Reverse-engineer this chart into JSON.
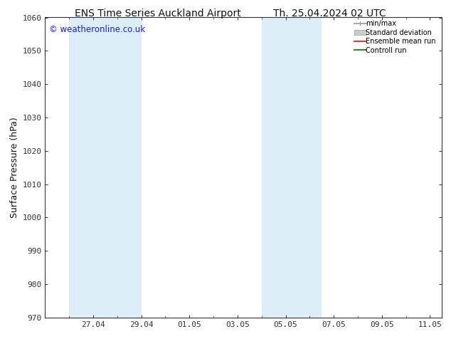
{
  "title_left": "ENS Time Series Auckland Airport",
  "title_right": "Th. 25.04.2024 02 UTC",
  "ylabel": "Surface Pressure (hPa)",
  "ylim": [
    970,
    1060
  ],
  "yticks": [
    970,
    980,
    990,
    1000,
    1010,
    1020,
    1030,
    1040,
    1050,
    1060
  ],
  "xlim": [
    0,
    16.5
  ],
  "xtick_labels": [
    "27.04",
    "29.04",
    "01.05",
    "03.05",
    "05.05",
    "07.05",
    "09.05",
    "11.05"
  ],
  "xtick_positions": [
    2,
    4,
    6,
    8,
    10,
    12,
    14,
    16
  ],
  "shaded_bands": [
    {
      "x_start": 1.33,
      "x_end": 2.67,
      "color": "#ddeef8"
    },
    {
      "x_start": 2.67,
      "x_end": 4.0,
      "color": "#ddeef8"
    },
    {
      "x_start": 9.33,
      "x_end": 10.67,
      "color": "#ddeef8"
    },
    {
      "x_start": 10.67,
      "x_end": 11.33,
      "color": "#ddeef8"
    }
  ],
  "watermark_text": "© weatheronline.co.uk",
  "watermark_color": "#1a1aff",
  "background_color": "#ffffff",
  "plot_bg_color": "#ffffff",
  "legend_items": [
    {
      "label": "min/max",
      "color": "#999999",
      "lw": 1.2
    },
    {
      "label": "Standard deviation",
      "color": "#cccccc",
      "lw": 5
    },
    {
      "label": "Ensemble mean run",
      "color": "#ff0000",
      "lw": 1.2
    },
    {
      "label": "Controll run",
      "color": "#007700",
      "lw": 1.2
    }
  ],
  "grid_color": "#cccccc",
  "spine_color": "#333333",
  "tick_color": "#333333",
  "title_fontsize": 10,
  "tick_fontsize": 8,
  "ylabel_fontsize": 9,
  "watermark_fontsize": 8.5
}
